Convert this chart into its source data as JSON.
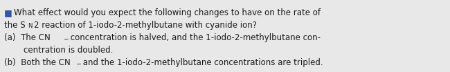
{
  "background_color": "#e8e8e8",
  "text_color": "#1a1a1a",
  "bullet_color": "#3355aa",
  "font_size": 8.5,
  "font_family": "DejaVu Sans",
  "line1": "What effect would you expect the following changes to have on the rate of",
  "line2_pre": "the S",
  "line2_sub": "N",
  "line2_post": "2 reaction of 1-iodo-2-methylbutane with cyanide ion?",
  "line3_pre": "(a)  The CN",
  "line3_sup": "−",
  "line3_post": " concentration is halved, and the 1-iodo-2-methylbutane con-",
  "line4": "centration is doubled.",
  "line5_pre": "(b)  Both the CN",
  "line5_sup": "−",
  "line5_post": " and the 1-iodo-2-methylbutane concentrations are tripled."
}
